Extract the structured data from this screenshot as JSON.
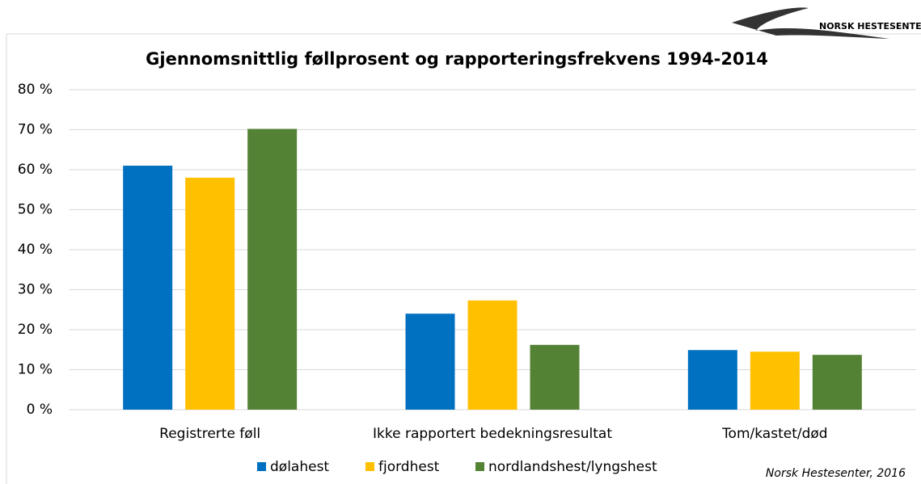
{
  "chart_data": {
    "type": "bar",
    "title": "Gjennomsnittlig føllprosent og rapporteringsfrekvens 1994-2014",
    "categories": [
      "Registrerte føll",
      "Ikke rapportert bedekningsresultat",
      "Tom/kastet/død"
    ],
    "series": [
      {
        "name": "dølahest",
        "color": "#0070c0",
        "values": [
          61,
          24,
          14.9
        ]
      },
      {
        "name": "fjordhest",
        "color": "#ffc000",
        "values": [
          58,
          27.3,
          14.5
        ]
      },
      {
        "name": "nordlandshest/lyngshest",
        "color": "#548235",
        "values": [
          70.2,
          16.2,
          13.7
        ]
      }
    ],
    "ylim": [
      0,
      80
    ],
    "yticks": [
      {
        "value": 0,
        "label": "0 %"
      },
      {
        "value": 10,
        "label": "10 %"
      },
      {
        "value": 20,
        "label": "20 %"
      },
      {
        "value": 30,
        "label": "30 %"
      },
      {
        "value": 40,
        "label": "40 %"
      },
      {
        "value": 50,
        "label": "50 %"
      },
      {
        "value": 60,
        "label": "60 %"
      },
      {
        "value": 70,
        "label": "70 %"
      },
      {
        "value": 80,
        "label": "80 %"
      }
    ],
    "grid": true,
    "legend": "bottom",
    "source": "Norsk Hestesenter, 2016",
    "logo": "NORSK HESTESENTER"
  }
}
